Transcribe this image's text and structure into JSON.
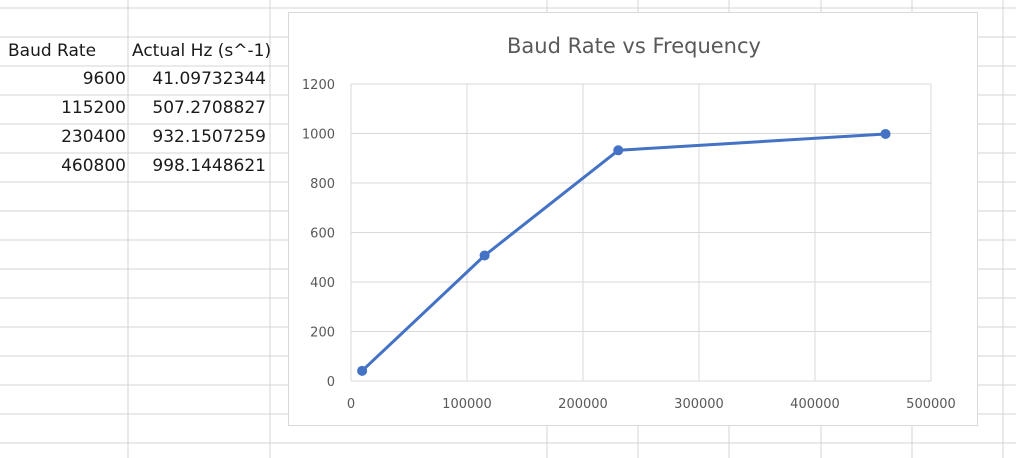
{
  "spreadsheet": {
    "headers": [
      "Baud Rate",
      "Actual Hz (s^-1)"
    ],
    "rows": [
      [
        "9600",
        "41.09732344"
      ],
      [
        "115200",
        "507.2708827"
      ],
      [
        "230400",
        "932.1507259"
      ],
      [
        "460800",
        "998.1448621"
      ]
    ]
  },
  "chart_data": {
    "type": "line",
    "title": "Baud Rate vs Frequency",
    "xlabel": "",
    "ylabel": "",
    "series": [
      {
        "x": [
          9600,
          115200,
          230400,
          460800
        ],
        "y": [
          41.09732344,
          507.2708827,
          932.1507259,
          998.1448621
        ]
      }
    ],
    "xlim": [
      0,
      500000
    ],
    "ylim": [
      0,
      1200
    ],
    "xticks": [
      "0",
      "100000",
      "200000",
      "300000",
      "400000",
      "500000"
    ],
    "yticks": [
      "0",
      "200",
      "400",
      "600",
      "800",
      "1000",
      "1200"
    ],
    "grid": true,
    "legend": "none",
    "colors": {
      "series": "#4472c4",
      "grid": "#d9d9d9",
      "text": "#595959"
    }
  }
}
